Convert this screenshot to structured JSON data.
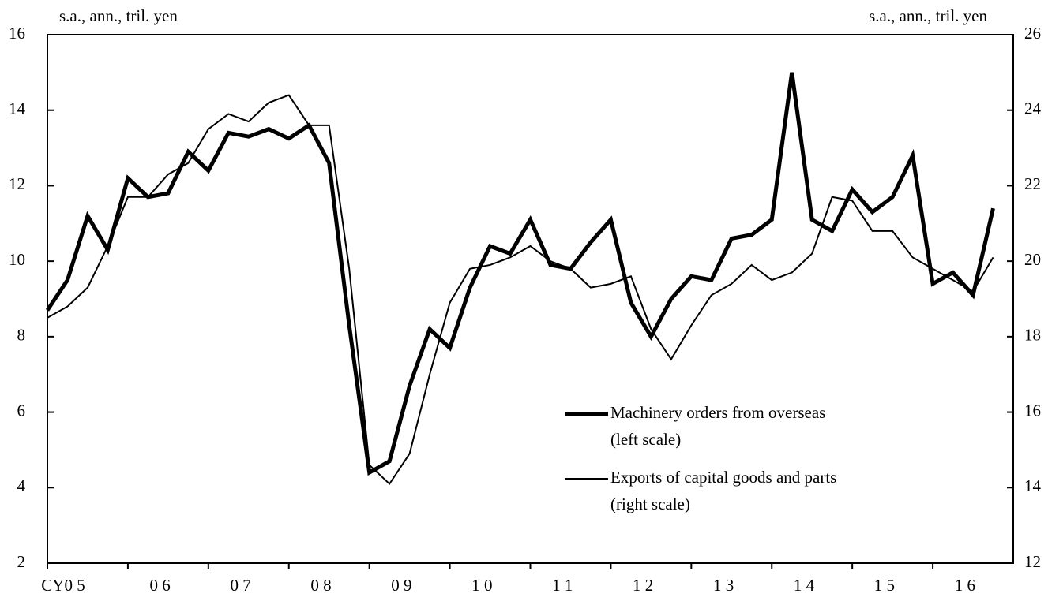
{
  "chart_data": {
    "type": "line",
    "y_label": "s.a., ann., tril. yen",
    "y2_label": "s.a., ann., tril. yen",
    "categories": [
      "CY0 5",
      null,
      null,
      null,
      "0 6",
      null,
      null,
      null,
      "0 7",
      null,
      null,
      null,
      "0 8",
      null,
      null,
      null,
      "0 9",
      null,
      null,
      null,
      "1 0",
      null,
      null,
      null,
      "1 1",
      null,
      null,
      null,
      "1 2",
      null,
      null,
      null,
      "1 3",
      null,
      null,
      null,
      "1 4",
      null,
      null,
      null,
      "1 5",
      null,
      null,
      null,
      "1 6",
      null,
      null,
      null
    ],
    "ylim": [
      2,
      16
    ],
    "yticks": [
      2,
      4,
      6,
      8,
      10,
      12,
      14,
      16
    ],
    "y2lim": [
      12,
      26
    ],
    "y2ticks": [
      12,
      14,
      16,
      18,
      20,
      22,
      24,
      26
    ],
    "legend": "lower-right",
    "series": [
      {
        "name": "Machinery orders from overseas",
        "scale_label": "(left scale)",
        "color": "#000000",
        "width": 5,
        "values": [
          8.7,
          9.5,
          11.2,
          10.3,
          12.2,
          11.7,
          11.8,
          12.9,
          12.4,
          13.4,
          13.3,
          13.5,
          13.25,
          13.6,
          12.6,
          8.3,
          4.4,
          4.7,
          6.7,
          8.2,
          7.7,
          9.3,
          10.4,
          10.2,
          11.1,
          9.9,
          9.8,
          10.5,
          11.1,
          8.9,
          8.0,
          9.0,
          9.6,
          9.5,
          10.6,
          10.7,
          11.1,
          15.0,
          11.1,
          10.8,
          11.9,
          11.3,
          11.7,
          12.8,
          9.4,
          9.7,
          9.1,
          11.4
        ]
      },
      {
        "name": "Exports of capital goods and parts",
        "scale_label": "(right scale)",
        "color": "#000000",
        "width": 2,
        "axis": "y2",
        "values": [
          18.5,
          18.8,
          19.3,
          20.4,
          21.7,
          21.7,
          22.3,
          22.6,
          23.5,
          23.9,
          23.7,
          24.2,
          24.4,
          23.6,
          23.6,
          19.8,
          14.6,
          14.1,
          14.9,
          17.0,
          18.9,
          19.8,
          19.9,
          20.1,
          20.4,
          20.0,
          19.8,
          19.3,
          19.4,
          19.6,
          18.2,
          17.4,
          18.3,
          19.1,
          19.4,
          19.9,
          19.5,
          19.7,
          20.2,
          21.7,
          21.6,
          20.8,
          20.8,
          20.1,
          19.8,
          19.5,
          19.2,
          20.1
        ]
      }
    ]
  }
}
